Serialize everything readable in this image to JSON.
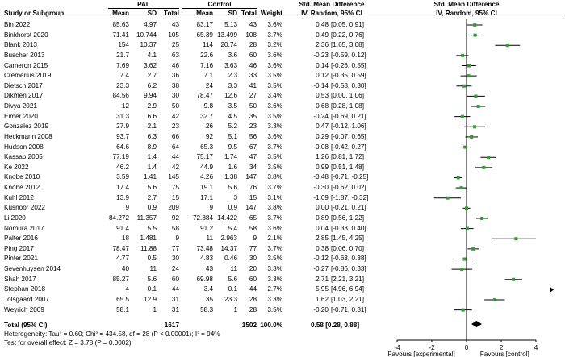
{
  "chart_data": {
    "type": "forest",
    "headers": {
      "group_exp": "PAL",
      "group_ctl": "Control",
      "effect_title": "Std. Mean Difference",
      "effect_method": "IV, Random, 95% CI",
      "plot_title": "Std. Mean Difference",
      "plot_method": "IV, Random, 95% CI",
      "study": "Study or Subgroup",
      "mean": "Mean",
      "sd": "SD",
      "total": "Total",
      "weight": "Weight"
    },
    "studies": [
      {
        "name": "Bin 2022",
        "m1": "85.63",
        "sd1": "4.97",
        "n1": "43",
        "m2": "83.17",
        "sd2": "5.13",
        "n2": "43",
        "w": "3.6%",
        "ci": "0.48 [0.05, 0.91]",
        "est": 0.48,
        "lo": 0.05,
        "hi": 0.91
      },
      {
        "name": "Binkhorst 2020",
        "m1": "71.41",
        "sd1": "10.744",
        "n1": "105",
        "m2": "65.39",
        "sd2": "13.499",
        "n2": "108",
        "w": "3.7%",
        "ci": "0.49 [0.22, 0.76]",
        "est": 0.49,
        "lo": 0.22,
        "hi": 0.76
      },
      {
        "name": "Blank 2013",
        "m1": "154",
        "sd1": "10.37",
        "n1": "25",
        "m2": "114",
        "sd2": "20.74",
        "n2": "28",
        "w": "3.2%",
        "ci": "2.36 [1.65, 3.08]",
        "est": 2.36,
        "lo": 1.65,
        "hi": 3.08
      },
      {
        "name": "Buscher 2013",
        "m1": "21.7",
        "sd1": "4.1",
        "n1": "63",
        "m2": "22.6",
        "sd2": "3.6",
        "n2": "60",
        "w": "3.6%",
        "ci": "-0.23 [-0.59, 0.12]",
        "est": -0.23,
        "lo": -0.59,
        "hi": 0.12
      },
      {
        "name": "Cameron 2015",
        "m1": "7.69",
        "sd1": "3.62",
        "n1": "46",
        "m2": "7.16",
        "sd2": "3.63",
        "n2": "46",
        "w": "3.6%",
        "ci": "0.14 [-0.26, 0.55]",
        "est": 0.14,
        "lo": -0.26,
        "hi": 0.55
      },
      {
        "name": "Cremerius 2019",
        "m1": "7.4",
        "sd1": "2.7",
        "n1": "36",
        "m2": "7.1",
        "sd2": "2.3",
        "n2": "33",
        "w": "3.5%",
        "ci": "0.12 [-0.35, 0.59]",
        "est": 0.12,
        "lo": -0.35,
        "hi": 0.59
      },
      {
        "name": "Dietsch 2017",
        "m1": "23.3",
        "sd1": "6.2",
        "n1": "38",
        "m2": "24",
        "sd2": "3.3",
        "n2": "41",
        "w": "3.5%",
        "ci": "-0.14 [-0.58, 0.30]",
        "est": -0.14,
        "lo": -0.58,
        "hi": 0.3
      },
      {
        "name": "Dikmen 2017",
        "m1": "84.56",
        "sd1": "9.94",
        "n1": "30",
        "m2": "78.47",
        "sd2": "12.6",
        "n2": "27",
        "w": "3.4%",
        "ci": "0.53 [0.00, 1.06]",
        "est": 0.53,
        "lo": 0.0,
        "hi": 1.06
      },
      {
        "name": "Divya 2021",
        "m1": "12",
        "sd1": "2.9",
        "n1": "50",
        "m2": "9.8",
        "sd2": "3.5",
        "n2": "50",
        "w": "3.6%",
        "ci": "0.68 [0.28, 1.08]",
        "est": 0.68,
        "lo": 0.28,
        "hi": 1.08
      },
      {
        "name": "Eimer 2020",
        "m1": "31.3",
        "sd1": "6.6",
        "n1": "42",
        "m2": "32.7",
        "sd2": "4.5",
        "n2": "35",
        "w": "3.5%",
        "ci": "-0.24 [-0.69, 0.21]",
        "est": -0.24,
        "lo": -0.69,
        "hi": 0.21
      },
      {
        "name": "Gonzalez 2019",
        "m1": "27.9",
        "sd1": "2.1",
        "n1": "23",
        "m2": "26",
        "sd2": "5.2",
        "n2": "23",
        "w": "3.3%",
        "ci": "0.47 [-0.12, 1.06]",
        "est": 0.47,
        "lo": -0.12,
        "hi": 1.06
      },
      {
        "name": "Heckmann 2008",
        "m1": "93.7",
        "sd1": "6.3",
        "n1": "66",
        "m2": "92",
        "sd2": "5.1",
        "n2": "56",
        "w": "3.6%",
        "ci": "0.29 [-0.07, 0.65]",
        "est": 0.29,
        "lo": -0.07,
        "hi": 0.65
      },
      {
        "name": "Hudson 2008",
        "m1": "64.6",
        "sd1": "8.9",
        "n1": "64",
        "m2": "65.3",
        "sd2": "9.5",
        "n2": "67",
        "w": "3.7%",
        "ci": "-0.08 [-0.42, 0.27]",
        "est": -0.08,
        "lo": -0.42,
        "hi": 0.27
      },
      {
        "name": "Kassab 2005",
        "m1": "77.19",
        "sd1": "1.4",
        "n1": "44",
        "m2": "75.17",
        "sd2": "1.74",
        "n2": "47",
        "w": "3.5%",
        "ci": "1.26 [0.81, 1.72]",
        "est": 1.26,
        "lo": 0.81,
        "hi": 1.72
      },
      {
        "name": "Ke 2022",
        "m1": "46.2",
        "sd1": "1.4",
        "n1": "42",
        "m2": "44.9",
        "sd2": "1.6",
        "n2": "34",
        "w": "3.5%",
        "ci": "0.99 [0.51, 1.48]",
        "est": 0.99,
        "lo": 0.51,
        "hi": 1.48
      },
      {
        "name": "Knobe 2010",
        "m1": "3.59",
        "sd1": "1.41",
        "n1": "145",
        "m2": "4.26",
        "sd2": "1.38",
        "n2": "147",
        "w": "3.8%",
        "ci": "-0.48 [-0.71, -0.25]",
        "est": -0.48,
        "lo": -0.71,
        "hi": -0.25
      },
      {
        "name": "Knobe 2012",
        "m1": "17.4",
        "sd1": "5.6",
        "n1": "75",
        "m2": "19.1",
        "sd2": "5.6",
        "n2": "76",
        "w": "3.7%",
        "ci": "-0.30 [-0.62, 0.02]",
        "est": -0.3,
        "lo": -0.62,
        "hi": 0.02
      },
      {
        "name": "Kuhl 2012",
        "m1": "13.9",
        "sd1": "2.7",
        "n1": "15",
        "m2": "17.1",
        "sd2": "3",
        "n2": "15",
        "w": "3.1%",
        "ci": "-1.09 [-1.87, -0.32]",
        "est": -1.09,
        "lo": -1.87,
        "hi": -0.32
      },
      {
        "name": "Kusnoor 2022",
        "m1": "9",
        "sd1": "0.9",
        "n1": "209",
        "m2": "9",
        "sd2": "0.9",
        "n2": "147",
        "w": "3.8%",
        "ci": "0.00 [-0.21, 0.21]",
        "est": 0.0,
        "lo": -0.21,
        "hi": 0.21
      },
      {
        "name": "Li 2020",
        "m1": "84.272",
        "sd1": "11.357",
        "n1": "92",
        "m2": "72.884",
        "sd2": "14.422",
        "n2": "65",
        "w": "3.7%",
        "ci": "0.89 [0.56, 1.22]",
        "est": 0.89,
        "lo": 0.56,
        "hi": 1.22
      },
      {
        "name": "Nomura 2017",
        "m1": "91.4",
        "sd1": "5.5",
        "n1": "58",
        "m2": "91.2",
        "sd2": "5.4",
        "n2": "58",
        "w": "3.6%",
        "ci": "0.04 [-0.33, 0.40]",
        "est": 0.04,
        "lo": -0.33,
        "hi": 0.4
      },
      {
        "name": "Palter 2016",
        "m1": "18",
        "sd1": "1.481",
        "n1": "9",
        "m2": "11",
        "sd2": "2.963",
        "n2": "9",
        "w": "2.1%",
        "ci": "2.85 [1.45, 4.25]",
        "est": 2.85,
        "lo": 1.45,
        "hi": 4.25
      },
      {
        "name": "Ping 2017",
        "m1": "78.47",
        "sd1": "11.88",
        "n1": "77",
        "m2": "73.48",
        "sd2": "14.37",
        "n2": "77",
        "w": "3.7%",
        "ci": "0.38 [0.06, 0.70]",
        "est": 0.38,
        "lo": 0.06,
        "hi": 0.7
      },
      {
        "name": "Pinter 2021",
        "m1": "4.77",
        "sd1": "0.5",
        "n1": "30",
        "m2": "4.83",
        "sd2": "0.46",
        "n2": "30",
        "w": "3.5%",
        "ci": "-0.12 [-0.63, 0.38]",
        "est": -0.12,
        "lo": -0.63,
        "hi": 0.38
      },
      {
        "name": "Sevenhuysen 2014",
        "m1": "40",
        "sd1": "11",
        "n1": "24",
        "m2": "43",
        "sd2": "11",
        "n2": "20",
        "w": "3.3%",
        "ci": "-0.27 [-0.86, 0.33]",
        "est": -0.27,
        "lo": -0.86,
        "hi": 0.33
      },
      {
        "name": "Shah 2017",
        "m1": "85.27",
        "sd1": "5.6",
        "n1": "60",
        "m2": "69.98",
        "sd2": "5.6",
        "n2": "60",
        "w": "3.3%",
        "ci": "2.71 [2.21, 3.21]",
        "est": 2.71,
        "lo": 2.21,
        "hi": 3.21
      },
      {
        "name": "Stephan 2018",
        "m1": "4",
        "sd1": "0.1",
        "n1": "44",
        "m2": "3.4",
        "sd2": "0.1",
        "n2": "44",
        "w": "2.7%",
        "ci": "5.95 [4.96, 6.94]",
        "est": 5.95,
        "lo": 4.96,
        "hi": 6.94
      },
      {
        "name": "Tolsgaard 2007",
        "m1": "65.5",
        "sd1": "12.9",
        "n1": "31",
        "m2": "35",
        "sd2": "23.3",
        "n2": "28",
        "w": "3.3%",
        "ci": "1.62 [1.03, 2.21]",
        "est": 1.62,
        "lo": 1.03,
        "hi": 2.21
      },
      {
        "name": "Weyrich 2009",
        "m1": "58.1",
        "sd1": "1",
        "n1": "31",
        "m2": "58.3",
        "sd2": "1",
        "n2": "28",
        "w": "3.5%",
        "ci": "-0.20 [-0.71, 0.31]",
        "est": -0.2,
        "lo": -0.71,
        "hi": 0.31
      }
    ],
    "total": {
      "label": "Total (95% CI)",
      "n1": "1617",
      "n2": "1502",
      "w": "100.0%",
      "ci": "0.58 [0.28, 0.88]",
      "est": 0.58,
      "lo": 0.28,
      "hi": 0.88
    },
    "heterogeneity": "Heterogeneity: Tau² = 0.60; Chi² = 434.58, df = 28 (P < 0.00001); I² = 94%",
    "overall_test": "Test for overall effect: Z = 3.78 (P = 0.0002)",
    "axis": {
      "xlim": [
        -4,
        4
      ],
      "ticks": [
        -4,
        -2,
        0,
        2,
        4
      ],
      "tick_labels": [
        "-4",
        "-2",
        "0",
        "2",
        "4"
      ],
      "left_label": "Favours [experimental]",
      "right_label": "Favours [control]"
    },
    "colors": {
      "point": "#3a9a3a",
      "line": "#000000",
      "diamond": "#000000"
    }
  }
}
